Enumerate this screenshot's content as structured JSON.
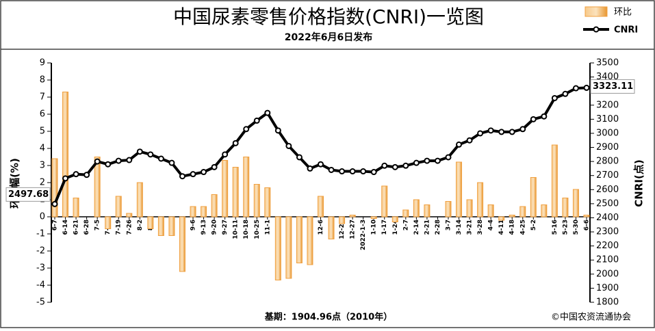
{
  "chart_data": {
    "type": "bar",
    "title": "中国尿素零售价格指数(CNRI)一览图",
    "subtitle": "2022年6月6日发布",
    "y_label": "环比幅(%)",
    "y2_label": "CNRI(点)",
    "footer": "基期：1904.96点（2010年）",
    "source": "©中国农资流通协会",
    "categories": [
      "6-7",
      "6-14",
      "6-21",
      "6-28",
      "7-5",
      "7-12",
      "7-19",
      "7-26",
      "8-2",
      "8-9",
      "8-16",
      "8-23",
      "8-30",
      "9-6",
      "9-13",
      "9-20",
      "9-27",
      "10-11",
      "10-18",
      "10-25",
      "11-1",
      "11-8",
      "11-15",
      "11-22",
      "11-29",
      "12-6",
      "12-13",
      "12-20",
      "12-27",
      "2022-1-3",
      "1-10",
      "1-17",
      "1-24",
      "2-7",
      "2-14",
      "2-21",
      "2-28",
      "3-7",
      "3-14",
      "3-21",
      "3-28",
      "4-4",
      "4-11",
      "4-18",
      "4-25",
      "5-2",
      null,
      "5-16",
      "5-23",
      "5-30",
      "6-6"
    ],
    "series": [
      {
        "name": "环比",
        "type": "bar",
        "color": "#f0a040",
        "values": [
          3.4,
          7.3,
          1.1,
          0,
          3.5,
          -0.7,
          1.2,
          0.2,
          2.0,
          -0.7,
          -1.1,
          -1.1,
          -3.2,
          0.6,
          0.6,
          1.3,
          3.3,
          2.9,
          3.5,
          1.9,
          1.7,
          -3.7,
          -3.6,
          -2.7,
          -2.8,
          1.2,
          -1.3,
          -0.4,
          0.1,
          0,
          -0.1,
          1.8,
          -0.3,
          0.4,
          1.0,
          0.7,
          0,
          0.9,
          3.2,
          1.0,
          2.0,
          0.7,
          -0.2,
          0.1,
          0.6,
          2.3,
          0.7,
          4.2,
          1.1,
          1.6,
          0.1
        ]
      },
      {
        "name": "CNRI",
        "type": "line",
        "axis": "y2",
        "color": "#000000",
        "values": [
          2497.68,
          2680,
          2710,
          2705,
          2800,
          2780,
          2805,
          2810,
          2870,
          2850,
          2820,
          2790,
          2695,
          2710,
          2725,
          2760,
          2850,
          2930,
          3030,
          3090,
          3145,
          3020,
          2910,
          2830,
          2750,
          2780,
          2740,
          2730,
          2730,
          2730,
          2725,
          2770,
          2760,
          2770,
          2790,
          2805,
          2805,
          2830,
          2920,
          2950,
          3000,
          3020,
          3010,
          3010,
          3030,
          3100,
          3120,
          3250,
          3280,
          3320,
          3323.11
        ]
      }
    ],
    "ylim": [
      -5,
      9
    ],
    "yticks": [
      -5,
      -4,
      -3,
      -2,
      -1,
      0,
      1,
      2,
      3,
      4,
      5,
      6,
      7,
      8,
      9
    ],
    "y2lim": [
      1800,
      3500
    ],
    "y2ticks": [
      1800,
      1900,
      2000,
      2100,
      2200,
      2300,
      2400,
      2500,
      2600,
      2700,
      2800,
      2900,
      3000,
      3100,
      3200,
      3300,
      3400,
      3500
    ],
    "legend": "top-right"
  }
}
